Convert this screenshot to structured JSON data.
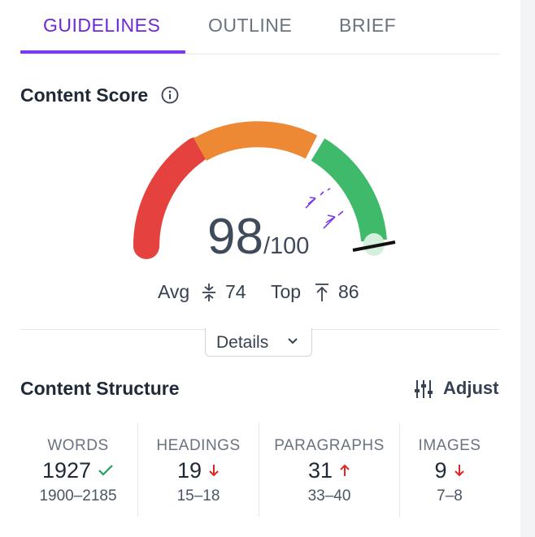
{
  "tabs": [
    {
      "label": "GUIDELINES",
      "active": true
    },
    {
      "label": "OUTLINE",
      "active": false
    },
    {
      "label": "BRIEF",
      "active": false
    }
  ],
  "content_score": {
    "title": "Content Score",
    "score": "98",
    "max": "/100",
    "avg_label": "Avg",
    "avg_value": "74",
    "top_label": "Top",
    "top_value": "86",
    "details_label": "Details",
    "gauge_colors": {
      "low": "#e5413f",
      "mid": "#ed8935",
      "high": "#3fba6a"
    }
  },
  "content_structure": {
    "title": "Content Structure",
    "adjust_label": "Adjust",
    "metrics": [
      {
        "label": "WORDS",
        "value": "1927",
        "range": "1900–2185",
        "status": "ok",
        "icon": "check-icon"
      },
      {
        "label": "HEADINGS",
        "value": "19",
        "range": "15–18",
        "status": "down",
        "icon": "arrow-down-icon"
      },
      {
        "label": "PARAGRAPHS",
        "value": "31",
        "range": "33–40",
        "status": "up",
        "icon": "arrow-up-icon"
      },
      {
        "label": "IMAGES",
        "value": "9",
        "range": "7–8",
        "status": "down",
        "icon": "arrow-down-icon"
      }
    ]
  },
  "colors": {
    "accent": "#7c3aed",
    "check": "#22a05b",
    "arrow": "#dc2626"
  }
}
